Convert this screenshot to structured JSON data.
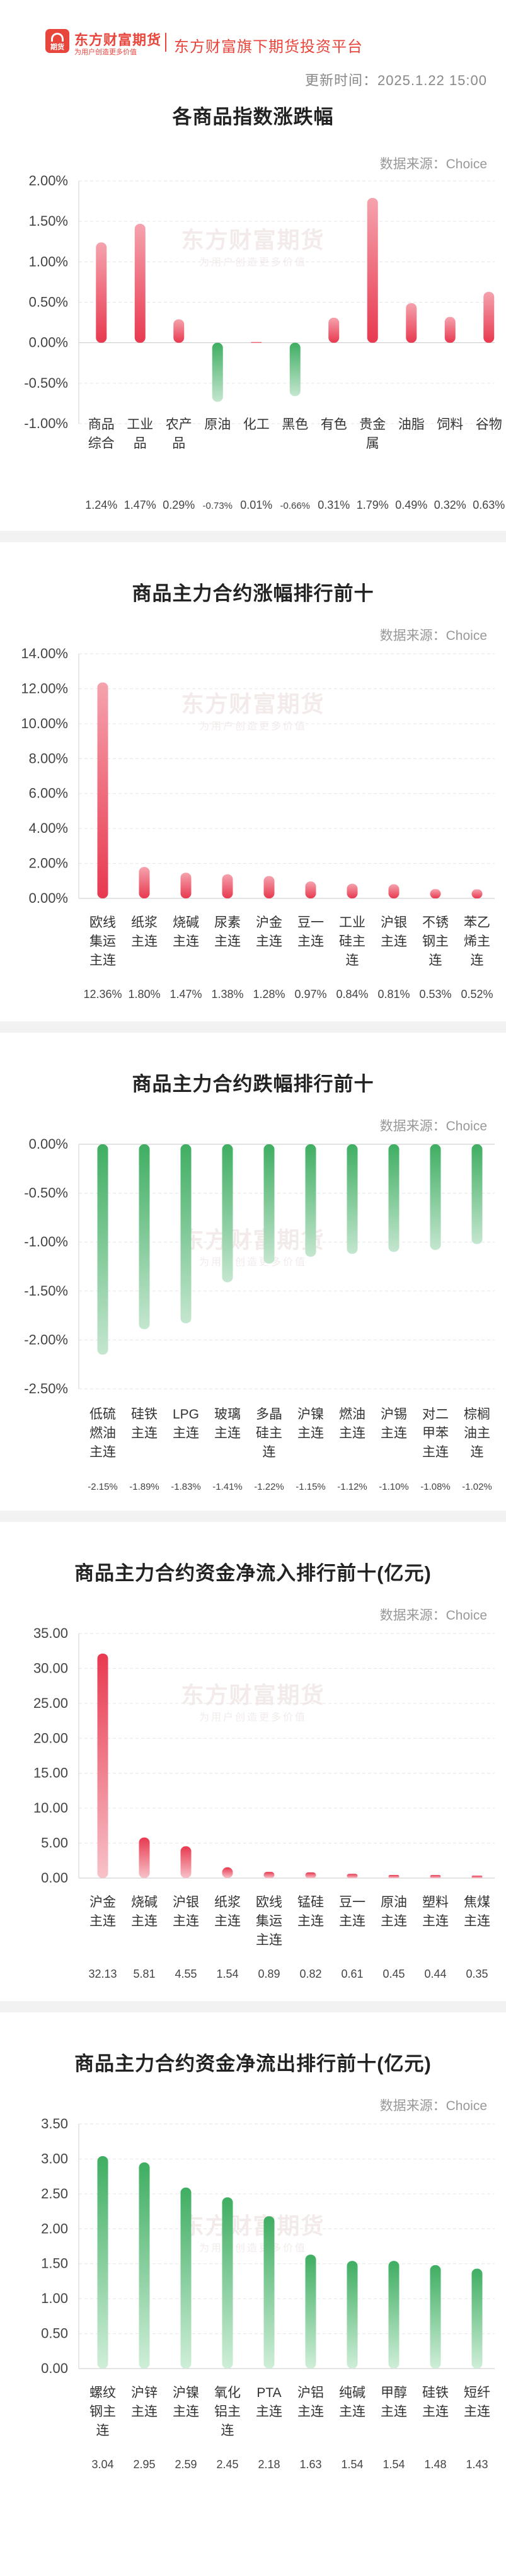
{
  "header": {
    "logo_text": "东方财富期货",
    "logo_slogan": "为用户创造更多价值",
    "logo_badge": "期货",
    "platform": "东方财富旗下期货投资平台",
    "update_time": "更新时间：2025.1.22 15:00"
  },
  "colors": {
    "rise_top": "#f5a3ae",
    "rise_bottom": "#e8394f",
    "fall_top": "#3fae62",
    "fall_bottom": "#c4e6cf",
    "inflow_top": "#e8394f",
    "inflow_bottom": "#f7c2c9",
    "outflow_top": "#3fae62",
    "outflow_bottom": "#cfeed8"
  },
  "watermark": {
    "line1": "东方财富期货",
    "line2": "为用户创造更多价值"
  },
  "sections": [
    {
      "title": "各商品指数涨跌幅",
      "source": "数据来源：Choice"
    },
    {
      "title": "商品主力合约涨幅排行前十",
      "source": "数据来源：Choice"
    },
    {
      "title": "商品主力合约跌幅排行前十",
      "source": "数据来源：Choice"
    },
    {
      "title": "商品主力合约资金净流入排行前十(亿元)",
      "source": "数据来源：Choice"
    },
    {
      "title": "商品主力合约资金净流出排行前十(亿元)",
      "source": "数据来源：Choice"
    }
  ],
  "chart_data": [
    {
      "type": "bar",
      "title": "各商品指数涨跌幅",
      "color": "mixed",
      "categories": [
        [
          "商品",
          "综合"
        ],
        [
          "工业",
          "品"
        ],
        [
          "农产",
          "品"
        ],
        [
          "原油"
        ],
        [
          "化工"
        ],
        [
          "黑色"
        ],
        [
          "有色"
        ],
        [
          "贵金",
          "属"
        ],
        [
          "油脂"
        ],
        [
          "饲料"
        ],
        [
          "谷物"
        ]
      ],
      "values": [
        1.24,
        1.47,
        0.29,
        -0.73,
        0.01,
        -0.66,
        0.31,
        1.79,
        0.49,
        0.32,
        0.63
      ],
      "value_labels": [
        "1.24%",
        "1.47%",
        "0.29%",
        "-0.73%",
        "0.01%",
        "-0.66%",
        "0.31%",
        "1.79%",
        "0.49%",
        "0.32%",
        "0.63%"
      ],
      "yticks": [
        "2.00%",
        "1.50%",
        "1.00%",
        "0.50%",
        "0.00%",
        "-0.50%",
        "-1.00%"
      ],
      "ylim": [
        -1.0,
        2.0
      ]
    },
    {
      "type": "bar",
      "title": "商品主力合约涨幅排行前十",
      "color": "rise",
      "categories": [
        [
          "欧线",
          "集运",
          "主连"
        ],
        [
          "纸浆",
          "主连"
        ],
        [
          "烧碱",
          "主连"
        ],
        [
          "尿素",
          "主连"
        ],
        [
          "沪金",
          "主连"
        ],
        [
          "豆一",
          "主连"
        ],
        [
          "工业",
          "硅主",
          "连"
        ],
        [
          "沪银",
          "主连"
        ],
        [
          "不锈",
          "钢主",
          "连"
        ],
        [
          "苯乙",
          "烯主",
          "连"
        ]
      ],
      "values": [
        12.36,
        1.8,
        1.47,
        1.38,
        1.28,
        0.97,
        0.84,
        0.81,
        0.53,
        0.52
      ],
      "value_labels": [
        "12.36%",
        "1.80%",
        "1.47%",
        "1.38%",
        "1.28%",
        "0.97%",
        "0.84%",
        "0.81%",
        "0.53%",
        "0.52%"
      ],
      "yticks": [
        "14.00%",
        "12.00%",
        "10.00%",
        "8.00%",
        "6.00%",
        "4.00%",
        "2.00%",
        "0.00%"
      ],
      "ylim": [
        0,
        14
      ]
    },
    {
      "type": "bar",
      "title": "商品主力合约跌幅排行前十",
      "color": "fall",
      "categories": [
        [
          "低硫",
          "燃油",
          "主连"
        ],
        [
          "硅铁",
          "主连"
        ],
        [
          "LPG",
          "主连"
        ],
        [
          "玻璃",
          "主连"
        ],
        [
          "多晶",
          "硅主",
          "连"
        ],
        [
          "沪镍",
          "主连"
        ],
        [
          "燃油",
          "主连"
        ],
        [
          "沪锡",
          "主连"
        ],
        [
          "对二",
          "甲苯",
          "主连"
        ],
        [
          "棕榈",
          "油主",
          "连"
        ]
      ],
      "values": [
        -2.15,
        -1.89,
        -1.83,
        -1.41,
        -1.22,
        -1.15,
        -1.12,
        -1.1,
        -1.08,
        -1.02
      ],
      "value_labels": [
        "-2.15%",
        "-1.89%",
        "-1.83%",
        "-1.41%",
        "-1.22%",
        "-1.15%",
        "-1.12%",
        "-1.10%",
        "-1.08%",
        "-1.02%"
      ],
      "yticks": [
        "0.00%",
        "-0.50%",
        "-1.00%",
        "-1.50%",
        "-2.00%",
        "-2.50%"
      ],
      "ylim": [
        -2.5,
        0
      ]
    },
    {
      "type": "bar",
      "title": "商品主力合约资金净流入排行前十(亿元)",
      "color": "inflow",
      "categories": [
        [
          "沪金",
          "主连"
        ],
        [
          "烧碱",
          "主连"
        ],
        [
          "沪银",
          "主连"
        ],
        [
          "纸浆",
          "主连"
        ],
        [
          "欧线",
          "集运",
          "主连"
        ],
        [
          "锰硅",
          "主连"
        ],
        [
          "豆一",
          "主连"
        ],
        [
          "原油",
          "主连"
        ],
        [
          "塑料",
          "主连"
        ],
        [
          "焦煤",
          "主连"
        ]
      ],
      "values": [
        32.13,
        5.81,
        4.55,
        1.54,
        0.89,
        0.82,
        0.61,
        0.45,
        0.44,
        0.35
      ],
      "value_labels": [
        "32.13",
        "5.81",
        "4.55",
        "1.54",
        "0.89",
        "0.82",
        "0.61",
        "0.45",
        "0.44",
        "0.35"
      ],
      "yticks": [
        "35.00",
        "30.00",
        "25.00",
        "20.00",
        "15.00",
        "10.00",
        "5.00",
        "0.00"
      ],
      "ylim": [
        0,
        35
      ]
    },
    {
      "type": "bar",
      "title": "商品主力合约资金净流出排行前十(亿元)",
      "color": "outflow",
      "categories": [
        [
          "螺纹",
          "钢主",
          "连"
        ],
        [
          "沪锌",
          "主连"
        ],
        [
          "沪镍",
          "主连"
        ],
        [
          "氧化",
          "铝主",
          "连"
        ],
        [
          "PTA",
          "主连"
        ],
        [
          "沪铝",
          "主连"
        ],
        [
          "纯碱",
          "主连"
        ],
        [
          "甲醇",
          "主连"
        ],
        [
          "硅铁",
          "主连"
        ],
        [
          "短纤",
          "主连"
        ]
      ],
      "values": [
        3.04,
        2.95,
        2.59,
        2.45,
        2.18,
        1.63,
        1.54,
        1.54,
        1.48,
        1.43
      ],
      "value_labels": [
        "3.04",
        "2.95",
        "2.59",
        "2.45",
        "2.18",
        "1.63",
        "1.54",
        "1.54",
        "1.48",
        "1.43"
      ],
      "yticks": [
        "3.50",
        "3.00",
        "2.50",
        "2.00",
        "1.50",
        "1.00",
        "0.50",
        "0.00"
      ],
      "ylim": [
        0,
        3.5
      ]
    }
  ]
}
